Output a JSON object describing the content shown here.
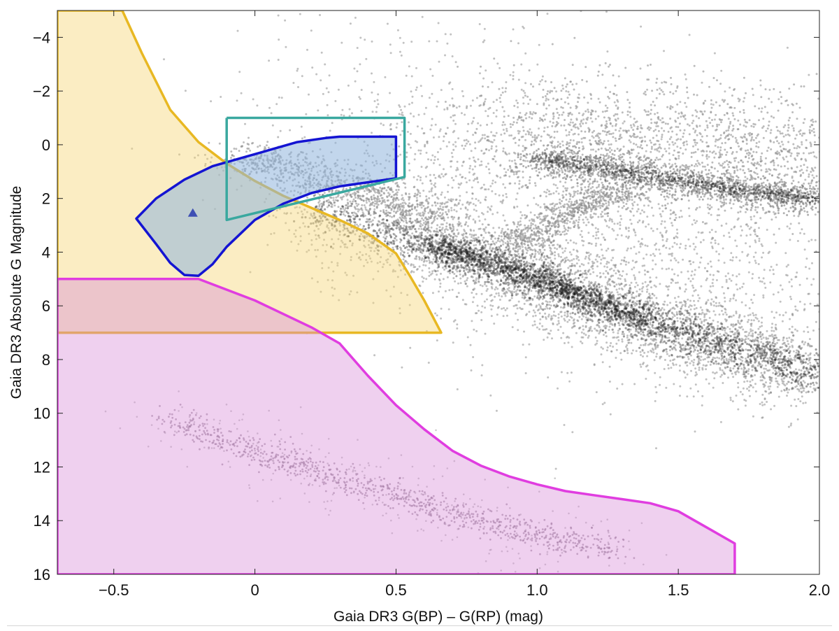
{
  "chart_data": {
    "type": "scatter",
    "title": "",
    "xlabel": "Gaia DR3 G(BP) – G(RP) (mag)",
    "ylabel": "Gaia DR3 Absolute G Magnitude",
    "xlim": [
      -0.7,
      2.0
    ],
    "ylim": [
      16,
      -5
    ],
    "y_inverted": true,
    "xticks": [
      -0.5,
      0,
      0.5,
      1.0,
      1.5,
      2.0
    ],
    "xtick_labels": [
      "−0.5",
      "0",
      "0.5",
      "1.0",
      "1.5",
      "2.0"
    ],
    "yticks": [
      -4,
      -2,
      0,
      2,
      4,
      6,
      8,
      10,
      12,
      14,
      16
    ],
    "ytick_labels": [
      "−4",
      "−2",
      "0",
      "2",
      "4",
      "6",
      "8",
      "10",
      "12",
      "14",
      "16"
    ],
    "grid": false,
    "colors": {
      "points": "#8f8f8f",
      "points_dense": "#2a2a2a",
      "yellow_edge": "#e8b823",
      "yellow_fill": "#f7d779",
      "magenta_edge": "#e03de0",
      "magenta_fill": "#d88ad8",
      "blue_edge": "#1414d2",
      "blue_fill": "#8fb4dd",
      "teal_edge": "#3aa89f",
      "marker": "#3e4fb4"
    },
    "regions": [
      {
        "name": "yellow-region",
        "vertices": [
          [
            -0.7,
            -5
          ],
          [
            -0.47,
            -5
          ],
          [
            -0.4,
            -3.4
          ],
          [
            -0.3,
            -1.3
          ],
          [
            -0.2,
            -0.1
          ],
          [
            -0.1,
            0.7
          ],
          [
            0,
            1.35
          ],
          [
            0.1,
            1.9
          ],
          [
            0.2,
            2.35
          ],
          [
            0.3,
            2.8
          ],
          [
            0.4,
            3.3
          ],
          [
            0.5,
            4.05
          ],
          [
            0.55,
            4.9
          ],
          [
            0.6,
            5.8
          ],
          [
            0.66,
            7.0
          ],
          [
            -0.7,
            7.0
          ]
        ]
      },
      {
        "name": "magenta-region",
        "vertices": [
          [
            -0.7,
            5.0
          ],
          [
            -0.2,
            5.0
          ],
          [
            0,
            5.8
          ],
          [
            0.2,
            6.8
          ],
          [
            0.3,
            7.4
          ],
          [
            0.4,
            8.6
          ],
          [
            0.5,
            9.7
          ],
          [
            0.6,
            10.6
          ],
          [
            0.7,
            11.4
          ],
          [
            0.8,
            11.95
          ],
          [
            0.9,
            12.35
          ],
          [
            1.0,
            12.65
          ],
          [
            1.1,
            12.9
          ],
          [
            1.2,
            13.05
          ],
          [
            1.3,
            13.2
          ],
          [
            1.4,
            13.35
          ],
          [
            1.5,
            13.65
          ],
          [
            1.6,
            14.25
          ],
          [
            1.7,
            14.85
          ],
          [
            1.7,
            16
          ],
          [
            -0.7,
            16
          ]
        ]
      },
      {
        "name": "blue-region",
        "vertices": [
          [
            -0.42,
            2.75
          ],
          [
            -0.35,
            2.0
          ],
          [
            -0.25,
            1.3
          ],
          [
            -0.15,
            0.8
          ],
          [
            -0.05,
            0.5
          ],
          [
            0.05,
            0.2
          ],
          [
            0.15,
            -0.1
          ],
          [
            0.25,
            -0.25
          ],
          [
            0.3,
            -0.3
          ],
          [
            0.4,
            -0.3
          ],
          [
            0.5,
            -0.3
          ],
          [
            0.5,
            1.25
          ],
          [
            0.4,
            1.4
          ],
          [
            0.3,
            1.55
          ],
          [
            0.2,
            1.8
          ],
          [
            0.1,
            2.2
          ],
          [
            0,
            2.8
          ],
          [
            -0.1,
            3.8
          ],
          [
            -0.15,
            4.45
          ],
          [
            -0.2,
            4.88
          ],
          [
            -0.25,
            4.85
          ],
          [
            -0.3,
            4.4
          ],
          [
            -0.35,
            3.7
          ],
          [
            -0.42,
            2.75
          ]
        ]
      },
      {
        "name": "teal-rectangle",
        "vertices": [
          [
            -0.1,
            -1.0
          ],
          [
            0.53,
            -1.0
          ],
          [
            0.53,
            1.2
          ],
          [
            -0.1,
            2.8
          ],
          [
            -0.1,
            -1.0
          ]
        ]
      }
    ],
    "marker": {
      "name": "triangle-marker",
      "x": -0.22,
      "y": 2.55
    },
    "density_features": [
      {
        "name": "main-sequence",
        "path": [
          [
            0.2,
            2.5
          ],
          [
            0.6,
            3.6
          ],
          [
            0.8,
            4.3
          ],
          [
            1.0,
            5.0
          ],
          [
            1.2,
            5.8
          ],
          [
            1.4,
            6.6
          ],
          [
            1.6,
            7.3
          ],
          [
            1.8,
            7.9
          ],
          [
            2.0,
            8.6
          ]
        ],
        "strength": 1.0
      },
      {
        "name": "red-giant-branch",
        "path": [
          [
            1.0,
            0.5
          ],
          [
            1.2,
            0.8
          ],
          [
            1.4,
            1.2
          ],
          [
            1.6,
            1.5
          ],
          [
            1.8,
            1.8
          ],
          [
            2.0,
            2.0
          ]
        ],
        "strength": 0.6
      },
      {
        "name": "subgiant-branch",
        "path": [
          [
            0.9,
            3.6
          ],
          [
            1.0,
            3.4
          ],
          [
            1.1,
            2.6
          ],
          [
            1.2,
            2.0
          ],
          [
            1.3,
            1.8
          ]
        ],
        "strength": 0.4
      },
      {
        "name": "white-dwarf-sequence",
        "path": [
          [
            -0.3,
            10.2
          ],
          [
            -0.1,
            11.0
          ],
          [
            0.1,
            11.7
          ],
          [
            0.3,
            12.5
          ],
          [
            0.5,
            13.1
          ],
          [
            0.7,
            13.7
          ],
          [
            0.9,
            14.3
          ],
          [
            1.1,
            14.75
          ],
          [
            1.3,
            15.1
          ]
        ],
        "strength": 0.5
      },
      {
        "name": "upper-main-sequence",
        "path": [
          [
            -0.05,
            0.5
          ],
          [
            0.1,
            0.8
          ],
          [
            0.3,
            1.5
          ],
          [
            0.5,
            2.1
          ],
          [
            0.6,
            2.8
          ]
        ],
        "strength": 0.5
      }
    ]
  }
}
